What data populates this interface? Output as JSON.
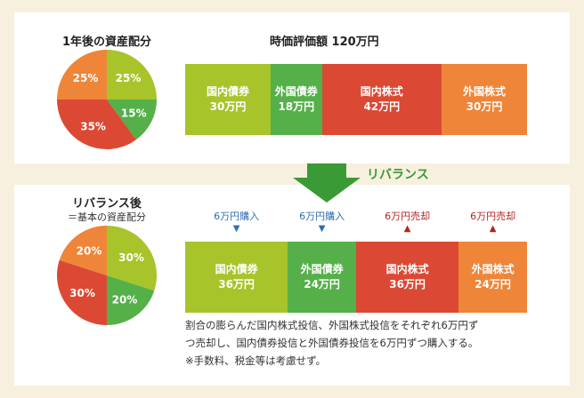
{
  "colors": {
    "domestic_bond": "#a8c42b",
    "foreign_bond": "#55b04a",
    "domestic_stock": "#db4934",
    "foreign_stock": "#ef8538",
    "buy": "#2f6db3",
    "sell": "#b5221f",
    "arrow": "#3a9a35"
  },
  "rebalance_label": "リバランス",
  "chart_data": [
    {
      "type": "pie",
      "title": "1年後の資産配分",
      "start_angle_deg": 0,
      "slices": [
        {
          "label": "25%",
          "value": 25,
          "color_key": "domestic_bond"
        },
        {
          "label": "15%",
          "value": 15,
          "color_key": "foreign_bond"
        },
        {
          "label": "35%",
          "value": 35,
          "color_key": "domestic_stock"
        },
        {
          "label": "25%",
          "value": 25,
          "color_key": "foreign_stock"
        }
      ]
    },
    {
      "type": "bar",
      "orientation": "horizontal-stacked",
      "title": "時価評価額 120万円",
      "segments": [
        {
          "name": "国内債券",
          "amount": "30万円",
          "value": 30,
          "color_key": "domestic_bond"
        },
        {
          "name": "外国債券",
          "amount": "18万円",
          "value": 18,
          "color_key": "foreign_bond"
        },
        {
          "name": "国内株式",
          "amount": "42万円",
          "value": 42,
          "color_key": "domestic_stock"
        },
        {
          "name": "外国株式",
          "amount": "30万円",
          "value": 30,
          "color_key": "foreign_stock"
        }
      ]
    },
    {
      "type": "pie",
      "title": "リバランス後",
      "subtitle": "＝基本の資産配分",
      "start_angle_deg": 0,
      "slices": [
        {
          "label": "30%",
          "value": 30,
          "color_key": "domestic_bond"
        },
        {
          "label": "20%",
          "value": 20,
          "color_key": "foreign_bond"
        },
        {
          "label": "30%",
          "value": 30,
          "color_key": "domestic_stock"
        },
        {
          "label": "20%",
          "value": 20,
          "color_key": "foreign_stock"
        }
      ]
    },
    {
      "type": "bar",
      "orientation": "horizontal-stacked",
      "segments": [
        {
          "name": "国内債券",
          "amount": "36万円",
          "value": 36,
          "color_key": "domestic_bond"
        },
        {
          "name": "外国債券",
          "amount": "24万円",
          "value": 24,
          "color_key": "foreign_bond"
        },
        {
          "name": "国内株式",
          "amount": "36万円",
          "value": 36,
          "color_key": "domestic_stock"
        },
        {
          "name": "外国株式",
          "amount": "24万円",
          "value": 24,
          "color_key": "foreign_stock"
        }
      ],
      "actions": [
        {
          "text": "6万円購入",
          "direction": "buy",
          "symbol": "▼"
        },
        {
          "text": "6万円購入",
          "direction": "buy",
          "symbol": "▼"
        },
        {
          "text": "6万円売却",
          "direction": "sell",
          "symbol": "▲"
        },
        {
          "text": "6万円売却",
          "direction": "sell",
          "symbol": "▲"
        }
      ]
    }
  ],
  "note": {
    "line1": "割合の膨らんだ国内株式投信、外国株式投信をそれぞれ6万円ず",
    "line2": "つ売却し、国内債券投信と外国債券投信を6万円ずつ購入する。",
    "line3": "※手数料、税金等は考慮せず。"
  }
}
